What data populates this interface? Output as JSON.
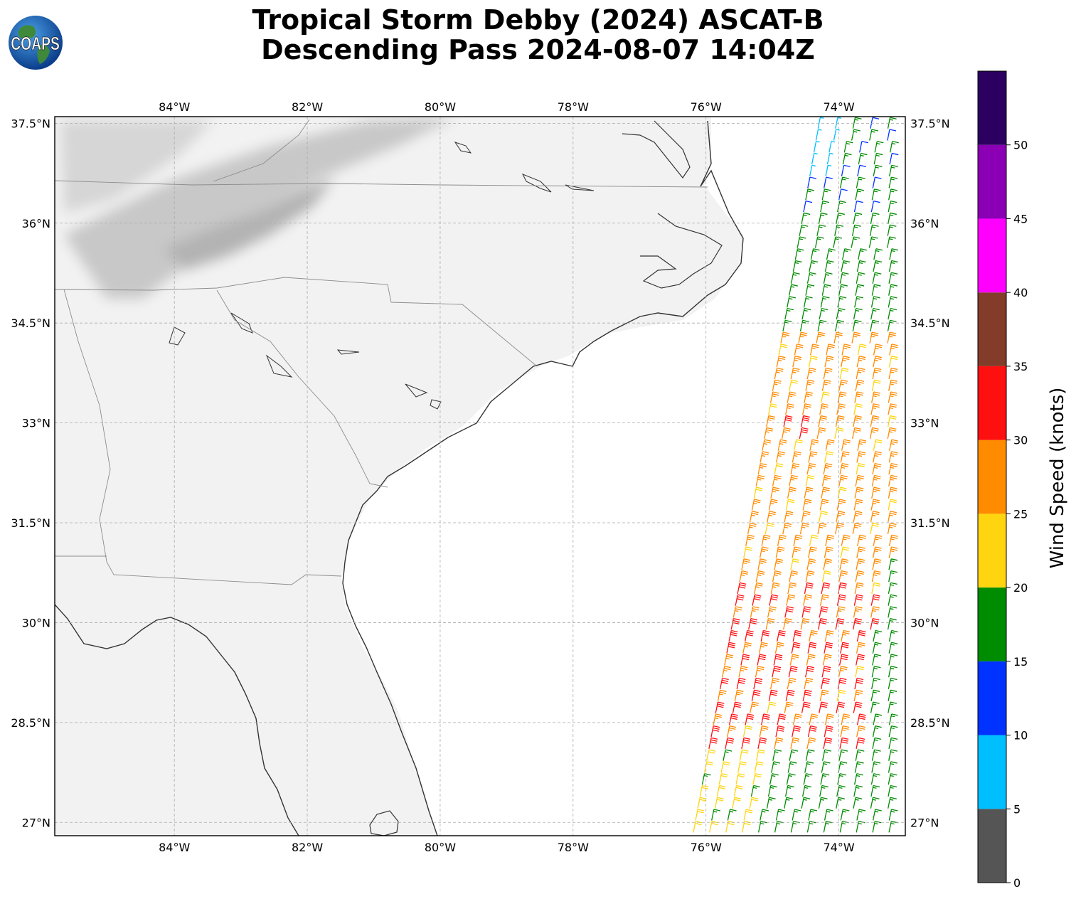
{
  "title": {
    "line1": "Tropical Storm Debby (2024) ASCAT-B",
    "line2": "Descending Pass 2024-08-07 14:04Z"
  },
  "logo": {
    "text": "COAPS",
    "icon": "globe-icon"
  },
  "map": {
    "lon_range": [
      -85.8,
      -73.0
    ],
    "lat_range": [
      26.8,
      37.6
    ],
    "lon_ticks": [
      {
        "value": -84,
        "label": "84°W"
      },
      {
        "value": -82,
        "label": "82°W"
      },
      {
        "value": -80,
        "label": "80°W"
      },
      {
        "value": -78,
        "label": "78°W"
      },
      {
        "value": -76,
        "label": "76°W"
      },
      {
        "value": -74,
        "label": "74°W"
      }
    ],
    "lat_ticks": [
      {
        "value": 37.5,
        "label": "37.5°N"
      },
      {
        "value": 36,
        "label": "36°N"
      },
      {
        "value": 34.5,
        "label": "34.5°N"
      },
      {
        "value": 33,
        "label": "33°N"
      },
      {
        "value": 31.5,
        "label": "31.5°N"
      },
      {
        "value": 30,
        "label": "30°N"
      },
      {
        "value": 28.5,
        "label": "28.5°N"
      },
      {
        "value": 27,
        "label": "27°N"
      }
    ],
    "grid": true,
    "background": "grayscale satellite imagery over land",
    "coast_color": "#333333",
    "border_color": "#8c8c8c"
  },
  "colorbar": {
    "label": "Wind Speed (knots)",
    "bins": [
      {
        "min": 0,
        "max": 5,
        "color": "#555555"
      },
      {
        "min": 5,
        "max": 10,
        "color": "#00bfff"
      },
      {
        "min": 10,
        "max": 15,
        "color": "#0033ff"
      },
      {
        "min": 15,
        "max": 20,
        "color": "#008c00"
      },
      {
        "min": 20,
        "max": 25,
        "color": "#ffd510"
      },
      {
        "min": 25,
        "max": 30,
        "color": "#ff8c00"
      },
      {
        "min": 30,
        "max": 35,
        "color": "#ff1010"
      },
      {
        "min": 35,
        "max": 40,
        "color": "#843c2a"
      },
      {
        "min": 40,
        "max": 45,
        "color": "#ff00ff"
      },
      {
        "min": 45,
        "max": 50,
        "color": "#8b00b5"
      },
      {
        "min": 50,
        "max": 55,
        "color": "#2b0060"
      }
    ],
    "tick_labels": [
      "0",
      "5",
      "10",
      "15",
      "20",
      "25",
      "30",
      "35",
      "40",
      "45",
      "50"
    ]
  },
  "chart_data": {
    "type": "scatter",
    "description_kind": "wind barbs from ASCAT-B swath",
    "swath": {
      "west_edge": [
        [
          -76.2,
          26.8
        ],
        [
          -75.6,
          30.0
        ],
        [
          -74.3,
          37.5
        ]
      ],
      "east_edge": [
        [
          -73.0,
          26.8
        ],
        [
          -73.0,
          37.5
        ]
      ]
    },
    "wind_speed_zones": [
      {
        "lat_range": [
          36.0,
          37.5
        ],
        "speed_kt": [
          8,
          18
        ]
      },
      {
        "lat_range": [
          34.2,
          36.0
        ],
        "speed_kt": [
          16,
          20
        ]
      },
      {
        "lat_range": [
          30.5,
          34.2
        ],
        "speed_kt": [
          20,
          30
        ]
      },
      {
        "lat_range": [
          28.0,
          30.5
        ],
        "speed_kt": [
          20,
          33
        ]
      },
      {
        "lat_range": [
          26.8,
          28.0
        ],
        "speed_kt": [
          15,
          25
        ]
      }
    ],
    "max_speed_kt": 33
  }
}
